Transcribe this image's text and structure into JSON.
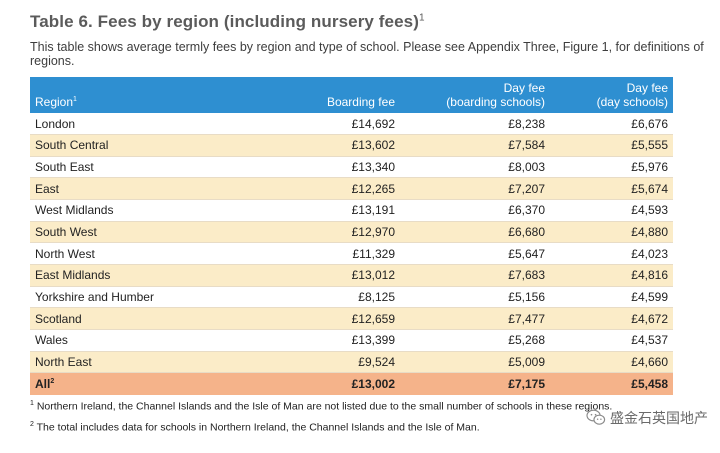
{
  "title": "Table 6. Fees by region (including nursery fees)",
  "title_note": "1",
  "subtitle": "This table shows average termly fees by region and type of school. Please see Appendix Three, Figure 1, for definitions of regions.",
  "table": {
    "header": {
      "region": "Region",
      "region_note": "1",
      "boarding": "Boarding fee",
      "day_boarding_1": "Day fee",
      "day_boarding_2": "(boarding schools)",
      "day_day_1": "Day fee",
      "day_day_2": "(day schools)"
    },
    "rows": [
      [
        "London",
        "£14,692",
        "£8,238",
        "£6,676"
      ],
      [
        "South Central",
        "£13,602",
        "£7,584",
        "£5,555"
      ],
      [
        "South East",
        "£13,340",
        "£8,003",
        "£5,976"
      ],
      [
        "East",
        "£12,265",
        "£7,207",
        "£5,674"
      ],
      [
        "West Midlands",
        "£13,191",
        "£6,370",
        "£4,593"
      ],
      [
        "South West",
        "£12,970",
        "£6,680",
        "£4,880"
      ],
      [
        "North West",
        "£11,329",
        "£5,647",
        "£4,023"
      ],
      [
        "East Midlands",
        "£13,012",
        "£7,683",
        "£4,816"
      ],
      [
        "Yorkshire and Humber",
        "£8,125",
        "£5,156",
        "£4,599"
      ],
      [
        "Scotland",
        "£12,659",
        "£7,477",
        "£4,672"
      ],
      [
        "Wales",
        "£13,399",
        "£5,268",
        "£4,537"
      ],
      [
        "North East",
        "£9,524",
        "£5,009",
        "£4,660"
      ]
    ],
    "total": {
      "label": "All",
      "label_note": "2",
      "boarding": "£13,002",
      "day_boarding": "£7,175",
      "day_day": "£5,458"
    }
  },
  "footnotes": [
    {
      "mark": "1",
      "text": "Northern Ireland, the Channel Islands and the Isle of Man are not listed due to the small number of schools in these regions."
    },
    {
      "mark": "2",
      "text": "The total includes data for schools in Northern Ireland, the Channel Islands and the Isle of Man."
    }
  ],
  "watermark": {
    "text": "盛金石英国地产",
    "icon": "wechat-icon",
    "color": "#6a6a6a"
  },
  "colors": {
    "header_bg": "#2e8fd1",
    "row_alt_bg": "#fbecc8",
    "total_bg": "#f5b38a",
    "title_color": "#5b5b5b"
  }
}
